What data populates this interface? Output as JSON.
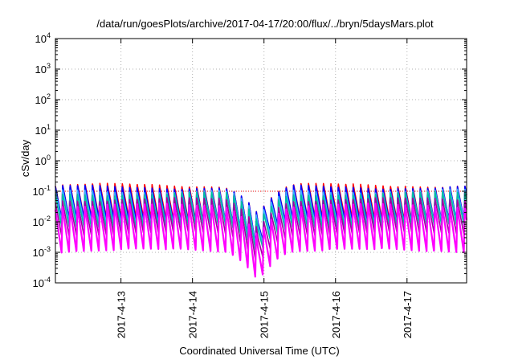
{
  "chart_data": {
    "type": "line",
    "title": "/data/run/goesPlots/archive/2017-04-17/20:00/flux/../bryn/5daysMars.plot",
    "xlabel": "Coordinated Universal Time (UTC)",
    "ylabel": "cSv/day",
    "y_scale": "log",
    "ylim": [
      0.0001,
      10000
    ],
    "y_ticks": [
      {
        "value": 0.0001,
        "base": "10",
        "exp": "-4"
      },
      {
        "value": 0.001,
        "base": "10",
        "exp": "-3"
      },
      {
        "value": 0.01,
        "base": "10",
        "exp": "-2"
      },
      {
        "value": 0.1,
        "base": "10",
        "exp": "-1"
      },
      {
        "value": 1,
        "base": "10",
        "exp": "0"
      },
      {
        "value": 10,
        "base": "10",
        "exp": "1"
      },
      {
        "value": 100,
        "base": "10",
        "exp": "2"
      },
      {
        "value": 1000,
        "base": "10",
        "exp": "3"
      },
      {
        "value": 10000,
        "base": "10",
        "exp": "4"
      }
    ],
    "x_range": [
      "2017-04-12T02:00",
      "2017-04-17T20:00"
    ],
    "x_ticks": [
      "2017-4-13",
      "2017-4-14",
      "2017-4-15",
      "2017-4-16",
      "2017-4-17"
    ],
    "x_tick_times": [
      "2017-04-13T00:00",
      "2017-04-14T00:00",
      "2017-04-15T00:00",
      "2017-04-16T00:00",
      "2017-04-17T00:00"
    ],
    "grid": true,
    "legend": "none",
    "reference_line": {
      "value": 0.1,
      "color": "#ff0000",
      "style": "dotted"
    },
    "pattern": {
      "cycles_per_day": 9.6,
      "dip_day": "2017-04-14T22:00",
      "dip_factor": 0.12
    },
    "series": [
      {
        "color": "#ff0000",
        "peak": 0.16,
        "trough": 0.012
      },
      {
        "color": "#0000ff",
        "peak": 0.14,
        "trough": 0.011
      },
      {
        "color": "#3cb0ff",
        "peak": 0.105,
        "trough": 0.009
      },
      {
        "color": "#00c0a0",
        "peak": 0.085,
        "trough": 0.007
      },
      {
        "color": "#a000a0",
        "peak": 0.055,
        "trough": 0.004
      },
      {
        "color": "#ff00ff",
        "peak": 0.035,
        "trough": 0.0011
      }
    ]
  }
}
